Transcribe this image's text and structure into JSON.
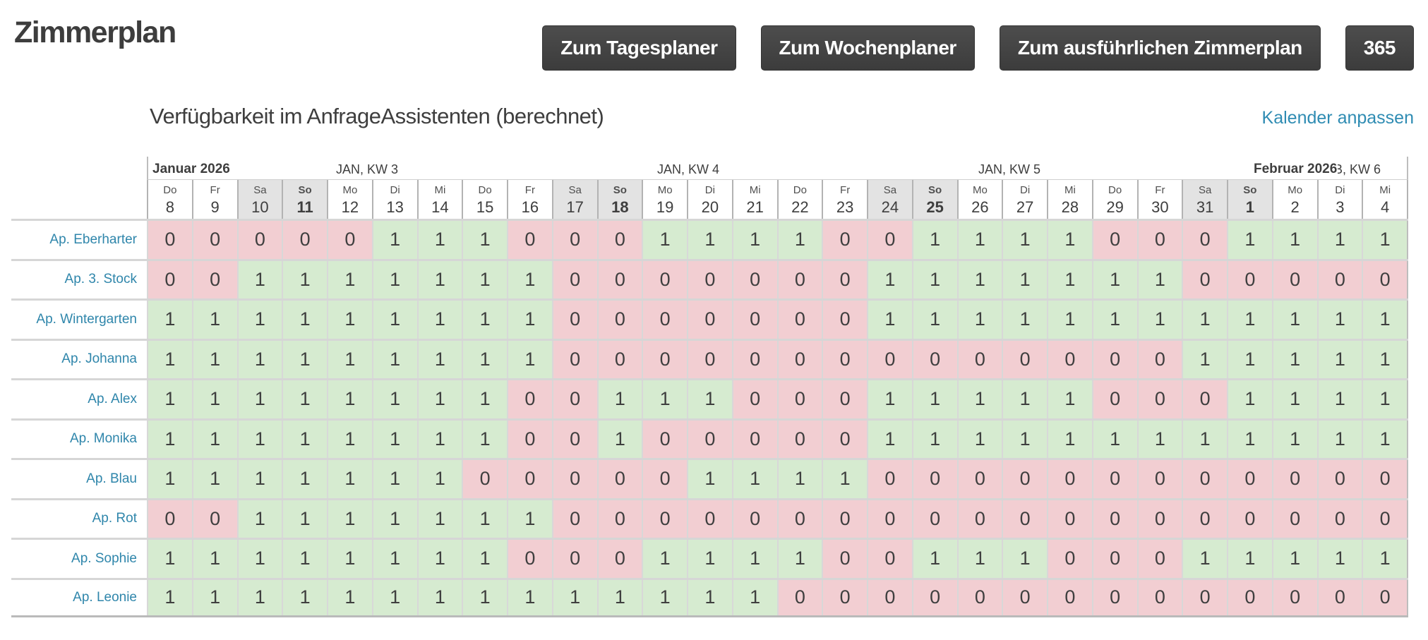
{
  "page": {
    "title": "Zimmerplan"
  },
  "toolbar": {
    "buttons": [
      {
        "id": "tagesplaner",
        "label": "Zum Tagesplaner"
      },
      {
        "id": "wochenplaner",
        "label": "Zum Wochenplaner"
      },
      {
        "id": "zimmerplan-detail",
        "label": "Zum ausführlichen Zimmerplan"
      },
      {
        "id": "365",
        "label": "365"
      }
    ]
  },
  "calendar": {
    "heading": "Verfügbarkeit im AnfrageAssistenten (berechnet)",
    "settings_link": "Kalender anpassen",
    "month_headers": [
      {
        "label": "Januar 2026",
        "col": 0,
        "bold": true
      },
      {
        "label": "JAN, KW 3",
        "col": 4,
        "bold": false
      },
      {
        "label": "JAN, KW 4",
        "col": 11,
        "bold": false
      },
      {
        "label": "JAN, KW 5",
        "col": 18,
        "bold": false
      },
      {
        "label": "Februar 2026",
        "col": 24,
        "bold": true
      },
      {
        "label": "FEB, KW 6",
        "col": 25.4,
        "bold": false
      }
    ],
    "day_headers": [
      {
        "weekday": "Do",
        "day": "8",
        "weekend": false,
        "sunday": false
      },
      {
        "weekday": "Fr",
        "day": "9",
        "weekend": false,
        "sunday": false
      },
      {
        "weekday": "Sa",
        "day": "10",
        "weekend": true,
        "sunday": false
      },
      {
        "weekday": "So",
        "day": "11",
        "weekend": true,
        "sunday": true
      },
      {
        "weekday": "Mo",
        "day": "12",
        "weekend": false,
        "sunday": false
      },
      {
        "weekday": "Di",
        "day": "13",
        "weekend": false,
        "sunday": false
      },
      {
        "weekday": "Mi",
        "day": "14",
        "weekend": false,
        "sunday": false
      },
      {
        "weekday": "Do",
        "day": "15",
        "weekend": false,
        "sunday": false
      },
      {
        "weekday": "Fr",
        "day": "16",
        "weekend": false,
        "sunday": false
      },
      {
        "weekday": "Sa",
        "day": "17",
        "weekend": true,
        "sunday": false
      },
      {
        "weekday": "So",
        "day": "18",
        "weekend": true,
        "sunday": true
      },
      {
        "weekday": "Mo",
        "day": "19",
        "weekend": false,
        "sunday": false
      },
      {
        "weekday": "Di",
        "day": "20",
        "weekend": false,
        "sunday": false
      },
      {
        "weekday": "Mi",
        "day": "21",
        "weekend": false,
        "sunday": false
      },
      {
        "weekday": "Do",
        "day": "22",
        "weekend": false,
        "sunday": false
      },
      {
        "weekday": "Fr",
        "day": "23",
        "weekend": false,
        "sunday": false
      },
      {
        "weekday": "Sa",
        "day": "24",
        "weekend": true,
        "sunday": false
      },
      {
        "weekday": "So",
        "day": "25",
        "weekend": true,
        "sunday": true
      },
      {
        "weekday": "Mo",
        "day": "26",
        "weekend": false,
        "sunday": false
      },
      {
        "weekday": "Di",
        "day": "27",
        "weekend": false,
        "sunday": false
      },
      {
        "weekday": "Mi",
        "day": "28",
        "weekend": false,
        "sunday": false
      },
      {
        "weekday": "Do",
        "day": "29",
        "weekend": false,
        "sunday": false
      },
      {
        "weekday": "Fr",
        "day": "30",
        "weekend": false,
        "sunday": false
      },
      {
        "weekday": "Sa",
        "day": "31",
        "weekend": true,
        "sunday": false
      },
      {
        "weekday": "So",
        "day": "1",
        "weekend": true,
        "sunday": true
      },
      {
        "weekday": "Mo",
        "day": "2",
        "weekend": false,
        "sunday": false
      },
      {
        "weekday": "Di",
        "day": "3",
        "weekend": false,
        "sunday": false
      },
      {
        "weekday": "Mi",
        "day": "4",
        "weekend": false,
        "sunday": false
      }
    ],
    "rooms": [
      {
        "label": "Ap. Eberharter",
        "values": [
          0,
          0,
          0,
          0,
          0,
          1,
          1,
          1,
          0,
          0,
          0,
          1,
          1,
          1,
          1,
          0,
          0,
          1,
          1,
          1,
          1,
          0,
          0,
          0,
          1,
          1,
          1,
          1
        ]
      },
      {
        "label": "Ap. 3. Stock",
        "values": [
          0,
          0,
          1,
          1,
          1,
          1,
          1,
          1,
          1,
          0,
          0,
          0,
          0,
          0,
          0,
          0,
          1,
          1,
          1,
          1,
          1,
          1,
          1,
          0,
          0,
          0,
          0,
          0
        ]
      },
      {
        "label": "Ap. Wintergarten",
        "values": [
          1,
          1,
          1,
          1,
          1,
          1,
          1,
          1,
          1,
          0,
          0,
          0,
          0,
          0,
          0,
          0,
          1,
          1,
          1,
          1,
          1,
          1,
          1,
          1,
          1,
          1,
          1,
          1
        ]
      },
      {
        "label": "Ap. Johanna",
        "values": [
          1,
          1,
          1,
          1,
          1,
          1,
          1,
          1,
          1,
          0,
          0,
          0,
          0,
          0,
          0,
          0,
          0,
          0,
          0,
          0,
          0,
          0,
          0,
          1,
          1,
          1,
          1,
          1
        ]
      },
      {
        "label": "Ap. Alex",
        "values": [
          1,
          1,
          1,
          1,
          1,
          1,
          1,
          1,
          0,
          0,
          1,
          1,
          1,
          0,
          0,
          0,
          1,
          1,
          1,
          1,
          1,
          0,
          0,
          0,
          1,
          1,
          1,
          1
        ]
      },
      {
        "label": "Ap. Monika",
        "values": [
          1,
          1,
          1,
          1,
          1,
          1,
          1,
          1,
          0,
          0,
          1,
          0,
          0,
          0,
          0,
          0,
          1,
          1,
          1,
          1,
          1,
          1,
          1,
          1,
          1,
          1,
          1,
          1
        ]
      },
      {
        "label": "Ap. Blau",
        "values": [
          1,
          1,
          1,
          1,
          1,
          1,
          1,
          0,
          0,
          0,
          0,
          0,
          1,
          1,
          1,
          1,
          0,
          0,
          0,
          0,
          0,
          0,
          0,
          0,
          0,
          0,
          0,
          0
        ]
      },
      {
        "label": "Ap. Rot",
        "values": [
          0,
          0,
          1,
          1,
          1,
          1,
          1,
          1,
          1,
          0,
          0,
          0,
          0,
          0,
          0,
          0,
          0,
          0,
          0,
          0,
          0,
          0,
          0,
          0,
          0,
          0,
          0,
          0
        ]
      },
      {
        "label": "Ap. Sophie",
        "values": [
          1,
          1,
          1,
          1,
          1,
          1,
          1,
          1,
          0,
          0,
          0,
          1,
          1,
          1,
          1,
          0,
          0,
          1,
          1,
          1,
          0,
          0,
          0,
          1,
          1,
          1,
          1,
          1
        ]
      },
      {
        "label": "Ap. Leonie",
        "values": [
          1,
          1,
          1,
          1,
          1,
          1,
          1,
          1,
          1,
          1,
          1,
          1,
          1,
          1,
          0,
          0,
          0,
          0,
          0,
          0,
          0,
          0,
          0,
          0,
          0,
          0,
          0,
          0
        ]
      }
    ],
    "colors": {
      "available_bg": "#d6ebd0",
      "unavailable_bg": "#f2ced2",
      "weekend_header_bg": "#e3e3e3",
      "link_color": "#2f8cb3",
      "button_bg": "#424242"
    }
  }
}
